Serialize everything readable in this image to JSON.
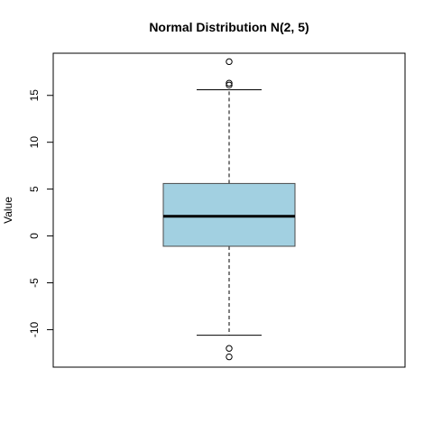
{
  "chart_data": {
    "type": "box",
    "title": "Normal Distribution N(2, 5)",
    "xlabel": "",
    "ylabel": "Value",
    "ylim": [
      -14,
      19.5
    ],
    "yticks": [
      -10,
      -5,
      0,
      5,
      10,
      15
    ],
    "ytick_labels": [
      "-10",
      "-5",
      "0",
      "5",
      "10",
      "15"
    ],
    "box": {
      "whisker_low": -10.6,
      "q1": -1.1,
      "median": 2.1,
      "q3": 5.6,
      "whisker_high": 15.6,
      "outliers": [
        18.6,
        16.3,
        16.1,
        -12.0,
        -12.9
      ]
    },
    "colors": {
      "box_fill": "#a2d0e1",
      "box_border": "#4a4a4a",
      "median_line": "#000000"
    },
    "grid": false
  }
}
